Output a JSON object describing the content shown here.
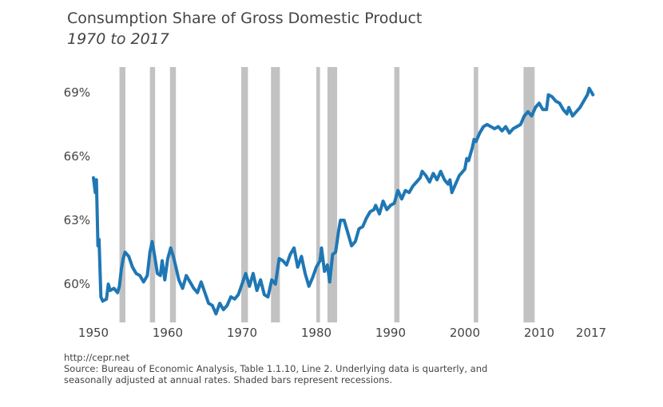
{
  "chart_data": {
    "type": "line",
    "title": "Consumption Share of Gross Domestic Product",
    "subtitle": "1970 to 2017",
    "xlabel": "",
    "ylabel": "",
    "xlim": [
      1950,
      2018
    ],
    "ylim": [
      58.2,
      70.2
    ],
    "x_ticks": [
      {
        "value": 1950,
        "label": "1950"
      },
      {
        "value": 1960,
        "label": "1960"
      },
      {
        "value": 1970,
        "label": "1970"
      },
      {
        "value": 1980,
        "label": "1980"
      },
      {
        "value": 1990,
        "label": "1990"
      },
      {
        "value": 2000,
        "label": "2000"
      },
      {
        "value": 2010,
        "label": "2010"
      },
      {
        "value": 2017,
        "label": "2017"
      }
    ],
    "y_ticks": [
      {
        "value": 60,
        "label": "60%"
      },
      {
        "value": 63,
        "label": "63%"
      },
      {
        "value": 66,
        "label": "66%"
      },
      {
        "value": 69,
        "label": "69%"
      }
    ],
    "grid": false,
    "line_color": "#1f77b4",
    "recession_color": "#c2c2c2",
    "recessions": [
      [
        1953.5,
        1954.3
      ],
      [
        1957.6,
        1958.3
      ],
      [
        1960.3,
        1961.1
      ],
      [
        1969.9,
        1970.8
      ],
      [
        1973.9,
        1975.1
      ],
      [
        1980.0,
        1980.5
      ],
      [
        1981.5,
        1982.8
      ],
      [
        1990.5,
        1991.2
      ],
      [
        2001.2,
        2001.8
      ],
      [
        2007.9,
        2009.4
      ]
    ],
    "series": [
      {
        "values": [
          [
            1950.0,
            65.0
          ],
          [
            1950.25,
            64.3
          ],
          [
            1950.4,
            64.9
          ],
          [
            1950.6,
            61.8
          ],
          [
            1950.75,
            62.1
          ],
          [
            1951.0,
            59.4
          ],
          [
            1951.25,
            59.2
          ],
          [
            1951.75,
            59.3
          ],
          [
            1952.0,
            60.0
          ],
          [
            1952.25,
            59.7
          ],
          [
            1952.75,
            59.8
          ],
          [
            1953.25,
            59.6
          ],
          [
            1953.5,
            59.9
          ],
          [
            1953.75,
            60.7
          ],
          [
            1954.0,
            61.2
          ],
          [
            1954.25,
            61.5
          ],
          [
            1954.75,
            61.3
          ],
          [
            1955.25,
            60.8
          ],
          [
            1955.75,
            60.5
          ],
          [
            1956.25,
            60.4
          ],
          [
            1956.75,
            60.1
          ],
          [
            1957.25,
            60.4
          ],
          [
            1957.6,
            61.5
          ],
          [
            1957.9,
            62.0
          ],
          [
            1958.25,
            61.3
          ],
          [
            1958.6,
            60.5
          ],
          [
            1959.0,
            60.4
          ],
          [
            1959.25,
            61.1
          ],
          [
            1959.6,
            60.2
          ],
          [
            1960.0,
            61.2
          ],
          [
            1960.4,
            61.7
          ],
          [
            1960.75,
            61.3
          ],
          [
            1961.1,
            60.8
          ],
          [
            1961.5,
            60.2
          ],
          [
            1962.0,
            59.8
          ],
          [
            1962.5,
            60.4
          ],
          [
            1963.0,
            60.1
          ],
          [
            1963.5,
            59.8
          ],
          [
            1964.0,
            59.6
          ],
          [
            1964.5,
            60.1
          ],
          [
            1965.0,
            59.6
          ],
          [
            1965.5,
            59.1
          ],
          [
            1966.0,
            59.0
          ],
          [
            1966.5,
            58.6
          ],
          [
            1967.0,
            59.1
          ],
          [
            1967.5,
            58.8
          ],
          [
            1968.0,
            59.0
          ],
          [
            1968.5,
            59.4
          ],
          [
            1969.0,
            59.3
          ],
          [
            1969.5,
            59.5
          ],
          [
            1970.0,
            60.0
          ],
          [
            1970.5,
            60.5
          ],
          [
            1971.0,
            59.9
          ],
          [
            1971.5,
            60.5
          ],
          [
            1972.0,
            59.7
          ],
          [
            1972.5,
            60.2
          ],
          [
            1973.0,
            59.5
          ],
          [
            1973.5,
            59.4
          ],
          [
            1974.0,
            60.2
          ],
          [
            1974.5,
            60.0
          ],
          [
            1975.0,
            61.2
          ],
          [
            1975.5,
            61.1
          ],
          [
            1976.0,
            60.9
          ],
          [
            1976.5,
            61.4
          ],
          [
            1977.0,
            61.7
          ],
          [
            1977.5,
            60.8
          ],
          [
            1978.0,
            61.3
          ],
          [
            1978.5,
            60.5
          ],
          [
            1979.0,
            59.9
          ],
          [
            1979.5,
            60.3
          ],
          [
            1980.0,
            60.8
          ],
          [
            1980.5,
            61.1
          ],
          [
            1980.7,
            61.7
          ],
          [
            1981.1,
            60.6
          ],
          [
            1981.5,
            60.9
          ],
          [
            1981.8,
            60.1
          ],
          [
            1982.2,
            61.4
          ],
          [
            1982.6,
            61.5
          ],
          [
            1983.0,
            62.5
          ],
          [
            1983.25,
            63.0
          ],
          [
            1983.75,
            63.0
          ],
          [
            1984.25,
            62.4
          ],
          [
            1984.75,
            61.8
          ],
          [
            1985.25,
            62.0
          ],
          [
            1985.75,
            62.6
          ],
          [
            1986.25,
            62.7
          ],
          [
            1986.75,
            63.1
          ],
          [
            1987.25,
            63.4
          ],
          [
            1987.75,
            63.5
          ],
          [
            1988.0,
            63.7
          ],
          [
            1988.5,
            63.3
          ],
          [
            1989.0,
            63.9
          ],
          [
            1989.5,
            63.5
          ],
          [
            1990.0,
            63.7
          ],
          [
            1990.5,
            63.8
          ],
          [
            1991.0,
            64.4
          ],
          [
            1991.5,
            64.0
          ],
          [
            1992.0,
            64.4
          ],
          [
            1992.5,
            64.3
          ],
          [
            1993.0,
            64.6
          ],
          [
            1993.5,
            64.8
          ],
          [
            1994.0,
            65.0
          ],
          [
            1994.25,
            65.3
          ],
          [
            1994.75,
            65.1
          ],
          [
            1995.25,
            64.8
          ],
          [
            1995.75,
            65.2
          ],
          [
            1996.25,
            64.9
          ],
          [
            1996.75,
            65.3
          ],
          [
            1997.25,
            64.9
          ],
          [
            1997.75,
            64.7
          ],
          [
            1998.0,
            64.9
          ],
          [
            1998.25,
            64.3
          ],
          [
            1998.75,
            64.7
          ],
          [
            1999.25,
            65.1
          ],
          [
            1999.75,
            65.3
          ],
          [
            2000.0,
            65.4
          ],
          [
            2000.25,
            65.9
          ],
          [
            2000.5,
            65.8
          ],
          [
            2001.0,
            66.4
          ],
          [
            2001.25,
            66.8
          ],
          [
            2001.5,
            66.7
          ],
          [
            2002.0,
            67.1
          ],
          [
            2002.5,
            67.4
          ],
          [
            2003.0,
            67.5
          ],
          [
            2003.5,
            67.4
          ],
          [
            2004.0,
            67.3
          ],
          [
            2004.5,
            67.4
          ],
          [
            2005.0,
            67.2
          ],
          [
            2005.5,
            67.4
          ],
          [
            2006.0,
            67.1
          ],
          [
            2006.5,
            67.3
          ],
          [
            2007.0,
            67.4
          ],
          [
            2007.5,
            67.5
          ],
          [
            2008.0,
            67.9
          ],
          [
            2008.5,
            68.1
          ],
          [
            2009.0,
            67.9
          ],
          [
            2009.5,
            68.3
          ],
          [
            2010.0,
            68.5
          ],
          [
            2010.5,
            68.2
          ],
          [
            2011.0,
            68.2
          ],
          [
            2011.25,
            68.9
          ],
          [
            2011.75,
            68.8
          ],
          [
            2012.25,
            68.6
          ],
          [
            2012.75,
            68.5
          ],
          [
            2013.25,
            68.2
          ],
          [
            2013.75,
            68.0
          ],
          [
            2014.0,
            68.3
          ],
          [
            2014.5,
            67.9
          ],
          [
            2015.0,
            68.1
          ],
          [
            2015.5,
            68.3
          ],
          [
            2016.0,
            68.6
          ],
          [
            2016.5,
            68.9
          ],
          [
            2016.75,
            69.2
          ],
          [
            2017.25,
            68.9
          ]
        ]
      }
    ]
  },
  "footer": {
    "url": "http://cepr.net",
    "source_line1": "Source: Bureau of Economic Analysis, Table 1.1.10, Line 2. Underlying data is quarterly, and",
    "source_line2": "seasonally adjusted at annual rates. Shaded bars represent recessions."
  }
}
